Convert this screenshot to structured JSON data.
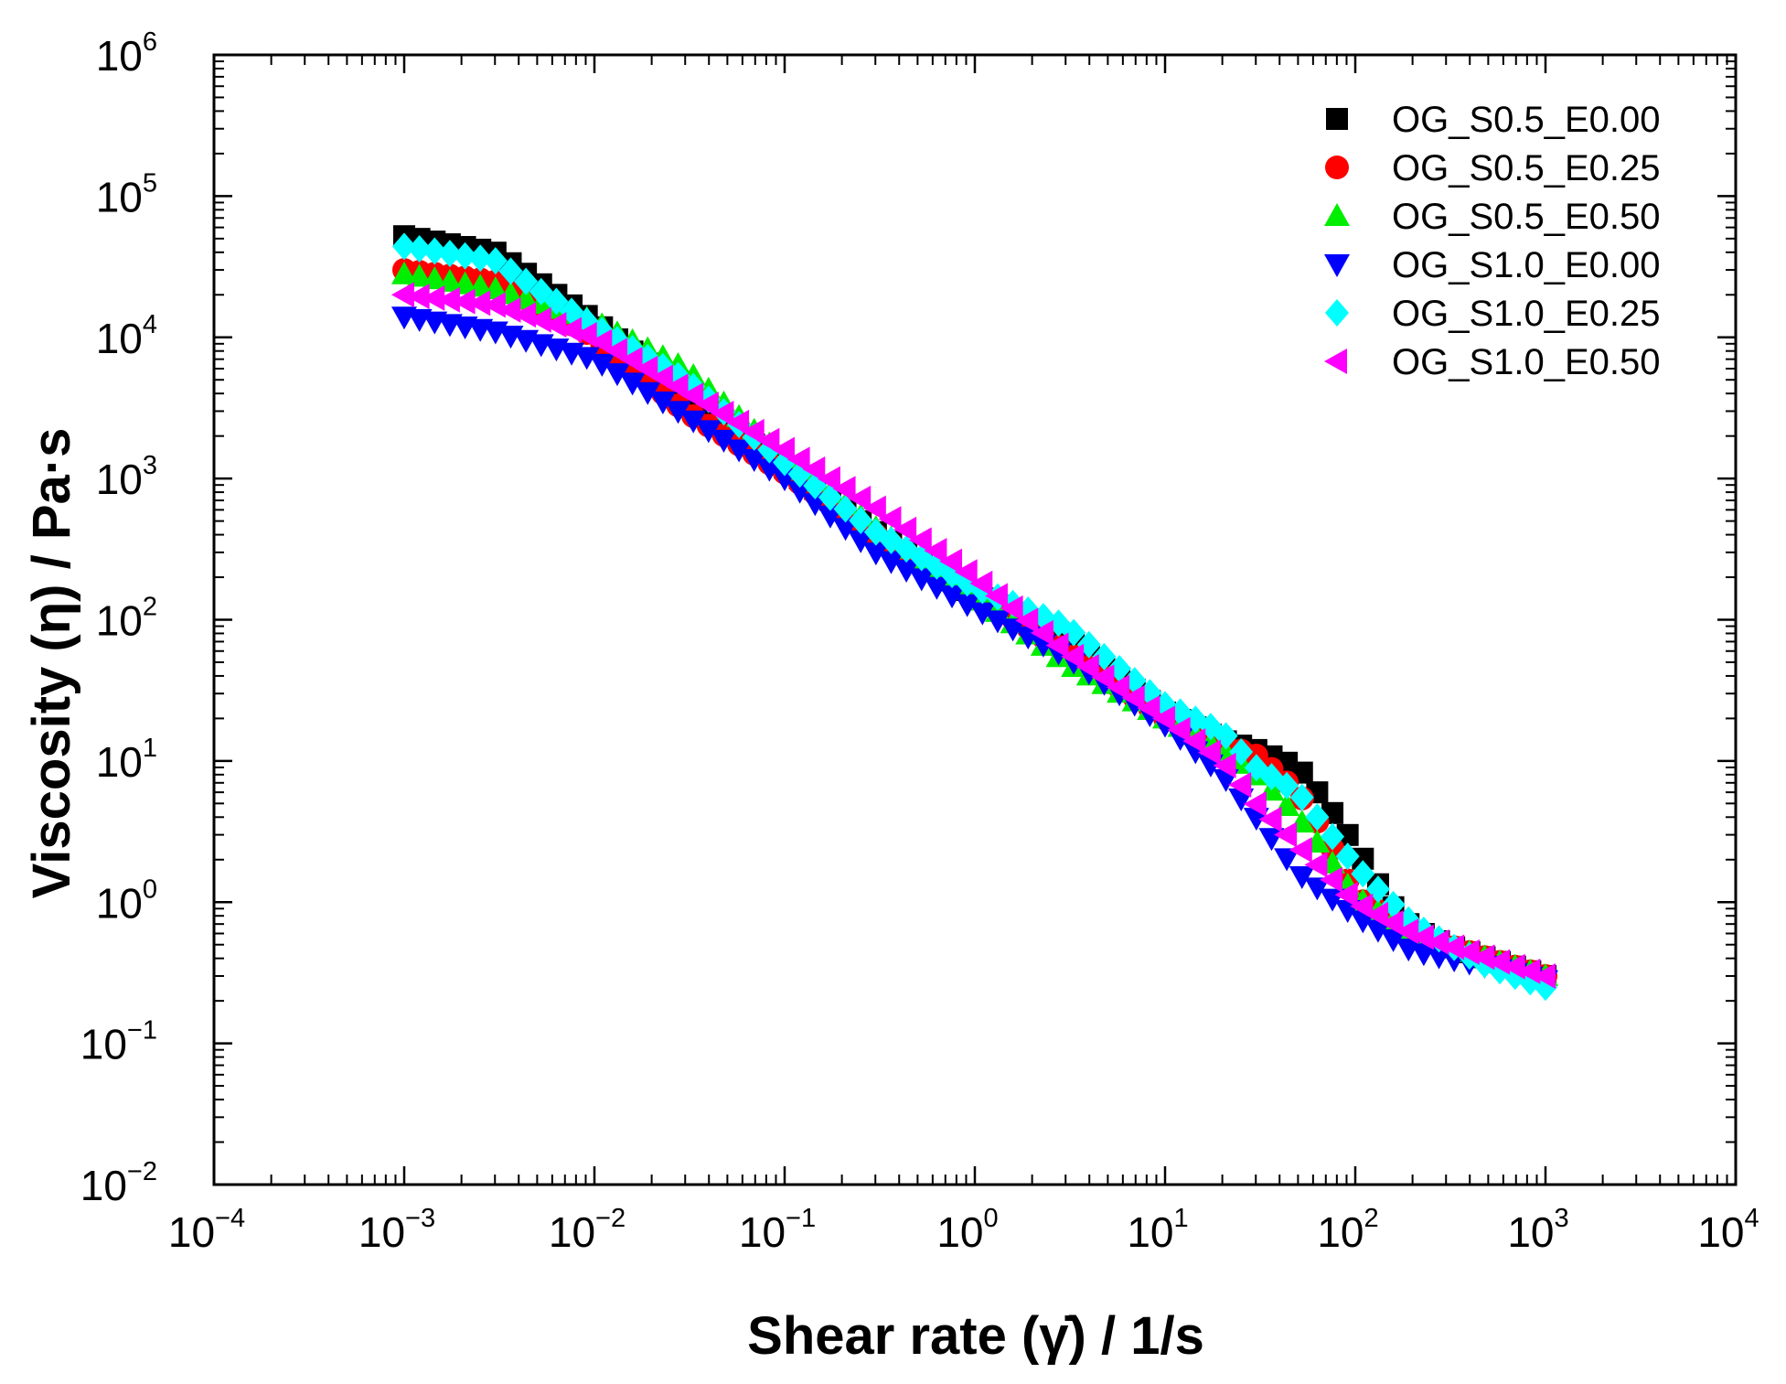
{
  "chart_data": {
    "type": "scatter",
    "title": "",
    "xlabel": "Shear rate (γ̇) / 1/s",
    "ylabel": "Viscosity (η) / Pa·s",
    "xscale": "log",
    "yscale": "log",
    "xlim": [
      0.0001,
      10000
    ],
    "ylim": [
      0.01,
      1000000
    ],
    "grid": false,
    "legend_position": "top-right",
    "x_ticks": [
      {
        "base": "10",
        "exp": "−4",
        "value": 0.0001
      },
      {
        "base": "10",
        "exp": "−3",
        "value": 0.001
      },
      {
        "base": "10",
        "exp": "−2",
        "value": 0.01
      },
      {
        "base": "10",
        "exp": "−1",
        "value": 0.1
      },
      {
        "base": "10",
        "exp": "0",
        "value": 1
      },
      {
        "base": "10",
        "exp": "1",
        "value": 10
      },
      {
        "base": "10",
        "exp": "2",
        "value": 100
      },
      {
        "base": "10",
        "exp": "3",
        "value": 1000
      },
      {
        "base": "10",
        "exp": "4",
        "value": 10000
      }
    ],
    "y_ticks": [
      {
        "base": "10",
        "exp": "−2",
        "value": 0.01
      },
      {
        "base": "10",
        "exp": "−1",
        "value": 0.1
      },
      {
        "base": "10",
        "exp": "0",
        "value": 1
      },
      {
        "base": "10",
        "exp": "1",
        "value": 10
      },
      {
        "base": "10",
        "exp": "2",
        "value": 100
      },
      {
        "base": "10",
        "exp": "3",
        "value": 1000
      },
      {
        "base": "10",
        "exp": "4",
        "value": 10000
      },
      {
        "base": "10",
        "exp": "5",
        "value": 100000
      },
      {
        "base": "10",
        "exp": "6",
        "value": 1000000
      }
    ],
    "series": [
      {
        "name": "OG_S0.5_E0.00",
        "marker": "square",
        "color": "#000000",
        "x": [
          0.001,
          0.003,
          0.01,
          0.03,
          0.1,
          0.3,
          1,
          3,
          10,
          20,
          30,
          50,
          70,
          100,
          150,
          200,
          300,
          500,
          1000
        ],
        "y": [
          52000,
          40000,
          13000,
          4000,
          1200,
          420,
          150,
          75,
          22,
          14,
          12,
          9,
          5,
          2.5,
          1.0,
          0.65,
          0.5,
          0.4,
          0.3
        ]
      },
      {
        "name": "OG_S0.5_E0.25",
        "marker": "circle",
        "color": "#ff0000",
        "x": [
          0.001,
          0.003,
          0.01,
          0.03,
          0.1,
          0.3,
          1,
          3,
          10,
          20,
          30,
          50,
          70,
          100,
          200,
          500,
          1000
        ],
        "y": [
          30000,
          25000,
          10000,
          3000,
          1100,
          400,
          150,
          60,
          20,
          13,
          11,
          6,
          3,
          1.1,
          0.6,
          0.4,
          0.3
        ]
      },
      {
        "name": "OG_S0.5_E0.50",
        "marker": "triangle-up",
        "color": "#00ee00",
        "x": [
          0.001,
          0.003,
          0.01,
          0.03,
          0.1,
          0.3,
          1,
          3,
          10,
          20,
          30,
          50,
          70,
          100,
          200,
          500,
          1000
        ],
        "y": [
          28000,
          22000,
          13000,
          6000,
          1400,
          450,
          150,
          50,
          20,
          12,
          8,
          4,
          2.2,
          1.1,
          0.6,
          0.4,
          0.3
        ]
      },
      {
        "name": "OG_S1.0_E0.00",
        "marker": "triangle-down",
        "color": "#0000ff",
        "x": [
          0.001,
          0.003,
          0.01,
          0.03,
          0.1,
          0.3,
          1,
          3,
          10,
          20,
          30,
          50,
          100,
          200,
          500,
          1000
        ],
        "y": [
          14000,
          11000,
          7000,
          2800,
          1000,
          300,
          120,
          55,
          18,
          8,
          4,
          1.6,
          0.8,
          0.45,
          0.35,
          0.28
        ]
      },
      {
        "name": "OG_S1.0_E0.25",
        "marker": "diamond",
        "color": "#00ffff",
        "x": [
          0.001,
          0.003,
          0.005,
          0.01,
          0.03,
          0.1,
          0.3,
          1,
          3,
          10,
          20,
          30,
          50,
          100,
          200,
          500,
          1000
        ],
        "y": [
          44000,
          35000,
          22000,
          12000,
          5000,
          1300,
          420,
          170,
          90,
          25,
          16,
          9,
          6,
          1.8,
          0.7,
          0.35,
          0.25
        ]
      },
      {
        "name": "OG_S1.0_E0.50",
        "marker": "triangle-left",
        "color": "#ff00ff",
        "x": [
          0.001,
          0.003,
          0.01,
          0.03,
          0.1,
          0.3,
          1,
          3,
          10,
          20,
          30,
          50,
          100,
          200,
          500,
          1000
        ],
        "y": [
          20000,
          17000,
          10000,
          4200,
          1600,
          620,
          200,
          60,
          20,
          10,
          5,
          2.5,
          1.0,
          0.6,
          0.4,
          0.3
        ]
      }
    ]
  }
}
